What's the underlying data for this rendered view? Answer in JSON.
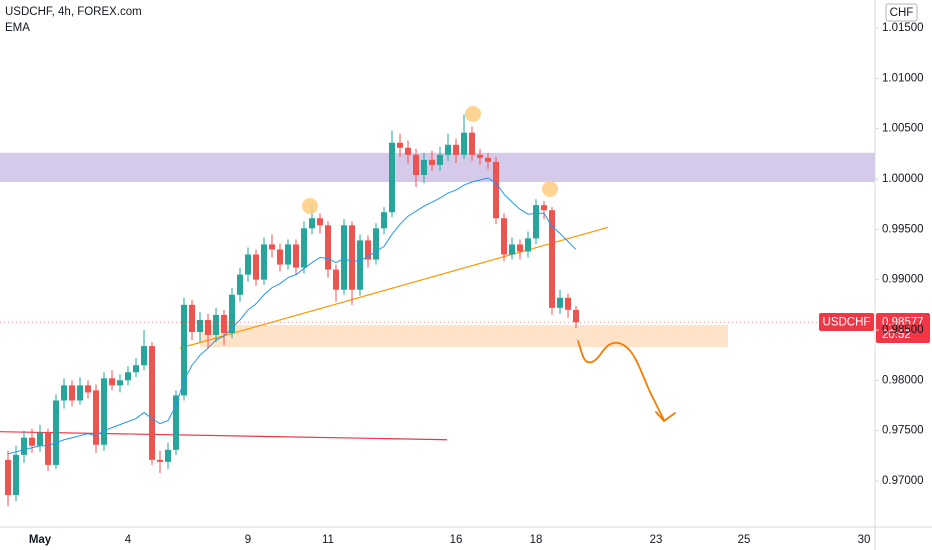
{
  "chart_data": {
    "type": "candlestick",
    "title": "USDCHF, 4h, FOREX.com",
    "indicator": "EMA",
    "currency": "CHF",
    "symbol": "USDCHF",
    "last_price": 0.98577,
    "countdown": "20:52",
    "up_color": "#26a69a",
    "down_color": "#ef5350",
    "ema_color": "#2196f3",
    "ylim": [
      0.96543,
      1.01778
    ],
    "yticks": [
      {
        "value": 0.97,
        "label": "0.97000"
      },
      {
        "value": 0.975,
        "label": "0.97500"
      },
      {
        "value": 0.98,
        "label": "0.98000"
      },
      {
        "value": 0.985,
        "label": "0.98500"
      },
      {
        "value": 0.99,
        "label": "0.99000"
      },
      {
        "value": 0.995,
        "label": "0.99500"
      },
      {
        "value": 1.0,
        "label": "1.00000"
      },
      {
        "value": 1.005,
        "label": "1.00500"
      },
      {
        "value": 1.01,
        "label": "1.01000"
      },
      {
        "value": 1.015,
        "label": "1.01500"
      }
    ],
    "categories": [
      null,
      null,
      null,
      null,
      "May",
      null,
      null,
      null,
      null,
      null,
      null,
      null,
      null,
      null,
      null,
      "4",
      null,
      null,
      null,
      null,
      null,
      null,
      null,
      null,
      null,
      null,
      null,
      null,
      null,
      null,
      "9",
      null,
      null,
      null,
      null,
      null,
      null,
      null,
      null,
      null,
      "11",
      null,
      null,
      null,
      null,
      null,
      null,
      null,
      null,
      null,
      null,
      null,
      null,
      null,
      null,
      null,
      "16",
      null,
      null,
      null,
      null,
      null,
      null,
      null,
      null,
      null,
      "18",
      null,
      null,
      null,
      null,
      null,
      null,
      null,
      null,
      null,
      null,
      null,
      null,
      null,
      null,
      "23",
      null,
      null,
      null,
      null,
      null,
      null,
      null,
      null,
      null,
      null,
      "25",
      null,
      null,
      null,
      null,
      null,
      null,
      null,
      null,
      null,
      null,
      null,
      null,
      null,
      null,
      "30",
      null
    ],
    "open": [
      0.9721,
      0.9686,
      0.9726,
      0.9743,
      0.9735,
      0.9748,
      0.9716,
      0.978,
      0.9795,
      0.978,
      0.9795,
      0.979,
      0.9736,
      0.9802,
      0.9795,
      0.98,
      0.9808,
      0.9815,
      0.9834,
      0.9721,
      0.9719,
      0.9731,
      0.9785,
      0.9875,
      0.9848,
      0.986,
      0.9845,
      0.9865,
      0.9847,
      0.9885,
      0.9905,
      0.9925,
      0.99,
      0.9935,
      0.993,
      0.9915,
      0.9935,
      0.9912,
      0.9951,
      0.9961,
      0.9954,
      0.991,
      0.989,
      0.9954,
      0.989,
      0.9939,
      0.992,
      0.9951,
      0.9967,
      1.0036,
      1.0031,
      1.0024,
      1.0004,
      1.0019,
      1.0014,
      1.0024,
      1.0034,
      1.0024,
      1.0046,
      1.0024,
      1.0021,
      1.0017,
      0.9961,
      0.9925,
      0.9935,
      0.9928,
      0.9941,
      0.9974,
      0.9969,
      0.9872,
      0.9882,
      0.987,
      null,
      null,
      null,
      null,
      null,
      null,
      null,
      null,
      null,
      null,
      null,
      null,
      null,
      null,
      null,
      null,
      null,
      null,
      null,
      null,
      null,
      null,
      null,
      null,
      null,
      null,
      null,
      null,
      null,
      null,
      null,
      null,
      null,
      null,
      null,
      null,
      null
    ],
    "high": [
      0.973,
      0.9735,
      0.975,
      0.9752,
      0.9756,
      0.9752,
      0.9786,
      0.9802,
      0.98,
      0.9803,
      0.98,
      0.9796,
      0.9808,
      0.981,
      0.9806,
      0.9814,
      0.9822,
      0.985,
      0.9838,
      0.973,
      0.9738,
      0.979,
      0.9882,
      0.988,
      0.9868,
      0.9866,
      0.9872,
      0.987,
      0.9892,
      0.9912,
      0.9932,
      0.993,
      0.9942,
      0.9945,
      0.9936,
      0.994,
      0.994,
      0.9958,
      0.9975,
      0.9966,
      0.9958,
      0.9915,
      0.996,
      0.9958,
      0.9945,
      0.9944,
      0.9956,
      0.9972,
      1.0048,
      1.0045,
      1.0038,
      1.003,
      1.0026,
      1.0028,
      1.0032,
      1.0045,
      1.004,
      1.0064,
      1.0052,
      1.003,
      1.0026,
      1.0022,
      0.9966,
      0.9942,
      0.994,
      0.9948,
      0.998,
      0.9978,
      0.9972,
      0.989,
      0.9886,
      0.9874,
      null,
      null,
      null,
      null,
      null,
      null,
      null,
      null,
      null,
      null,
      null,
      null,
      null,
      null,
      null,
      null,
      null,
      null,
      null,
      null,
      null,
      null,
      null,
      null,
      null,
      null,
      null,
      null,
      null,
      null,
      null,
      null,
      null,
      null,
      null,
      null,
      null
    ],
    "low": [
      0.9675,
      0.968,
      0.9718,
      0.9728,
      0.9729,
      0.971,
      0.9712,
      0.9772,
      0.9774,
      0.9776,
      0.9782,
      0.9728,
      0.973,
      0.979,
      0.9788,
      0.9795,
      0.9803,
      0.981,
      0.9716,
      0.9708,
      0.9712,
      0.9726,
      0.978,
      0.984,
      0.9838,
      0.9832,
      0.9838,
      0.9835,
      0.9842,
      0.9878,
      0.9898,
      0.9894,
      0.9895,
      0.9922,
      0.9908,
      0.991,
      0.9905,
      0.9906,
      0.9945,
      0.9946,
      0.9902,
      0.9878,
      0.9885,
      0.9875,
      0.9884,
      0.9912,
      0.9915,
      0.9945,
      0.9962,
      1.0022,
      1.0015,
      0.9992,
      0.9996,
      1.0008,
      1.0008,
      1.0018,
      1.0016,
      1.002,
      1.0018,
      1.0014,
      1.001,
      0.9955,
      0.9918,
      0.992,
      0.992,
      0.9922,
      0.9935,
      0.996,
      0.9865,
      0.9866,
      0.9862,
      0.9852,
      null,
      null,
      null,
      null,
      null,
      null,
      null,
      null,
      null,
      null,
      null,
      null,
      null,
      null,
      null,
      null,
      null,
      null,
      null,
      null,
      null,
      null,
      null,
      null,
      null,
      null,
      null,
      null,
      null,
      null,
      null,
      null,
      null,
      null,
      null,
      null,
      null
    ],
    "close": [
      0.9686,
      0.9726,
      0.9743,
      0.9735,
      0.9748,
      0.9716,
      0.978,
      0.9795,
      0.978,
      0.9795,
      0.9788,
      0.9736,
      0.9802,
      0.9795,
      0.98,
      0.9808,
      0.9815,
      0.9834,
      0.9721,
      0.9719,
      0.9731,
      0.9785,
      0.9875,
      0.9848,
      0.986,
      0.9845,
      0.9865,
      0.9847,
      0.9885,
      0.9905,
      0.9925,
      0.99,
      0.9935,
      0.993,
      0.9915,
      0.9935,
      0.9912,
      0.9951,
      0.9961,
      0.9954,
      0.991,
      0.989,
      0.9954,
      0.989,
      0.9939,
      0.992,
      0.9951,
      0.9967,
      1.0036,
      1.0031,
      1.0024,
      1.0004,
      1.0019,
      1.0014,
      1.0024,
      1.0034,
      1.0024,
      1.0046,
      1.0024,
      1.0021,
      1.0017,
      0.9961,
      0.9925,
      0.9935,
      0.9928,
      0.9941,
      0.9974,
      0.9969,
      0.9872,
      0.9882,
      0.987,
      0.98577,
      null,
      null,
      null,
      null,
      null,
      null,
      null,
      null,
      null,
      null,
      null,
      null,
      null,
      null,
      null,
      null,
      null,
      null,
      null,
      null,
      null,
      null,
      null,
      null,
      null,
      null,
      null,
      null,
      null,
      null,
      null,
      null,
      null,
      null,
      null,
      null,
      null
    ],
    "ema": [
      0.9727,
      0.9729,
      0.9731,
      0.9733,
      0.9735,
      0.9735,
      0.9738,
      0.9741,
      0.9743,
      0.9745,
      0.9747,
      0.9745,
      0.975,
      0.9753,
      0.9756,
      0.9759,
      0.9762,
      0.9768,
      0.9762,
      0.9757,
      0.976,
      0.9775,
      0.98,
      0.9815,
      0.9825,
      0.9832,
      0.984,
      0.9844,
      0.9852,
      0.986,
      0.987,
      0.9876,
      0.9885,
      0.9892,
      0.9896,
      0.9902,
      0.9905,
      0.9911,
      0.9917,
      0.9922,
      0.9921,
      0.9917,
      0.9921,
      0.9918,
      0.9919,
      0.9923,
      0.9928,
      0.9933,
      0.9945,
      0.9955,
      0.9963,
      0.9968,
      0.9973,
      0.9977,
      0.9981,
      0.9986,
      0.9989,
      0.9994,
      0.9997,
      0.9999,
      1.0001,
      0.9996,
      0.9985,
      0.9977,
      0.997,
      0.9965,
      0.9966,
      0.9966,
      0.9953,
      0.9946,
      0.9938,
      0.993,
      null,
      null,
      null,
      null,
      null,
      null,
      null,
      null,
      null,
      null,
      null,
      null,
      null,
      null,
      null,
      null,
      null,
      null,
      null,
      null,
      null,
      null,
      null,
      null,
      null,
      null,
      null,
      null,
      null,
      null,
      null,
      null,
      null,
      null,
      null,
      null,
      null
    ],
    "zones": [
      {
        "from": 0.9997,
        "to": 1.0026,
        "color": "#d1c4e9"
      },
      {
        "from": 0.9833,
        "to": 0.9855,
        "color": "#ffe0c2",
        "x": [
          24,
          90
        ]
      }
    ],
    "lines": [
      {
        "x": [
          21.5,
          75
        ],
        "y": [
          0.9832,
          0.9952
        ],
        "color": "#ff9800"
      },
      {
        "x": [
          -1,
          54.9
        ],
        "y": [
          0.9749,
          0.9741
        ],
        "color": "#f23645"
      }
    ]
  }
}
